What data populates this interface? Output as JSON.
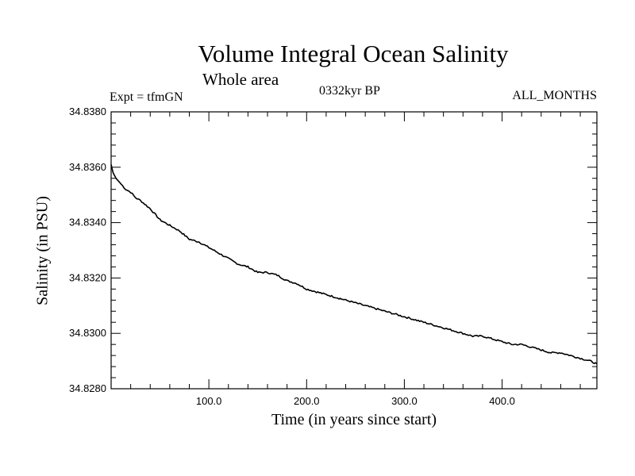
{
  "chart_data": {
    "type": "line",
    "title": "Volume Integral Ocean Salinity",
    "subtitle": "Whole area",
    "annotations": {
      "left": "Expt = tfmGN",
      "center": "0332kyr BP",
      "right": "ALL_MONTHS"
    },
    "xlabel": "Time (in years since start)",
    "ylabel": "Salinity (in PSU)",
    "xlim": [
      0,
      497
    ],
    "ylim": [
      34.828,
      34.838
    ],
    "xticks": [
      100,
      200,
      300,
      400
    ],
    "xtick_labels": [
      "100.0",
      "200.0",
      "300.0",
      "400.0"
    ],
    "yticks": [
      34.828,
      34.83,
      34.832,
      34.834,
      34.836,
      34.838
    ],
    "ytick_labels": [
      "34.8280",
      "34.8300",
      "34.8320",
      "34.8340",
      "34.8360",
      "34.8380"
    ],
    "grid": false,
    "series": [
      {
        "color": "#000000",
        "x": [
          0,
          2,
          5,
          10,
          15,
          20,
          25,
          30,
          40,
          50,
          60,
          70,
          80,
          90,
          100,
          110,
          120,
          130,
          140,
          150,
          160,
          170,
          180,
          190,
          200,
          210,
          220,
          230,
          240,
          250,
          260,
          270,
          280,
          290,
          300,
          310,
          320,
          330,
          340,
          350,
          360,
          370,
          380,
          390,
          400,
          410,
          420,
          430,
          440,
          450,
          460,
          470,
          480,
          490,
          497
        ],
        "y": [
          34.8361,
          34.8358,
          34.8356,
          34.8354,
          34.8352,
          34.8351,
          34.8349,
          34.8348,
          34.8345,
          34.8341,
          34.8339,
          34.8337,
          34.8334,
          34.8333,
          34.8331,
          34.8329,
          34.8327,
          34.8325,
          34.8324,
          34.8322,
          34.8322,
          34.8321,
          34.8319,
          34.8318,
          34.8316,
          34.8315,
          34.8314,
          34.8313,
          34.8312,
          34.8311,
          34.831,
          34.8309,
          34.8308,
          34.8307,
          34.8306,
          34.8305,
          34.8304,
          34.8303,
          34.8302,
          34.8301,
          34.83,
          34.8299,
          34.8299,
          34.8298,
          34.8297,
          34.8296,
          34.8296,
          34.8295,
          34.8294,
          34.8293,
          34.8293,
          34.8292,
          34.8291,
          34.829,
          34.8289
        ]
      }
    ]
  }
}
